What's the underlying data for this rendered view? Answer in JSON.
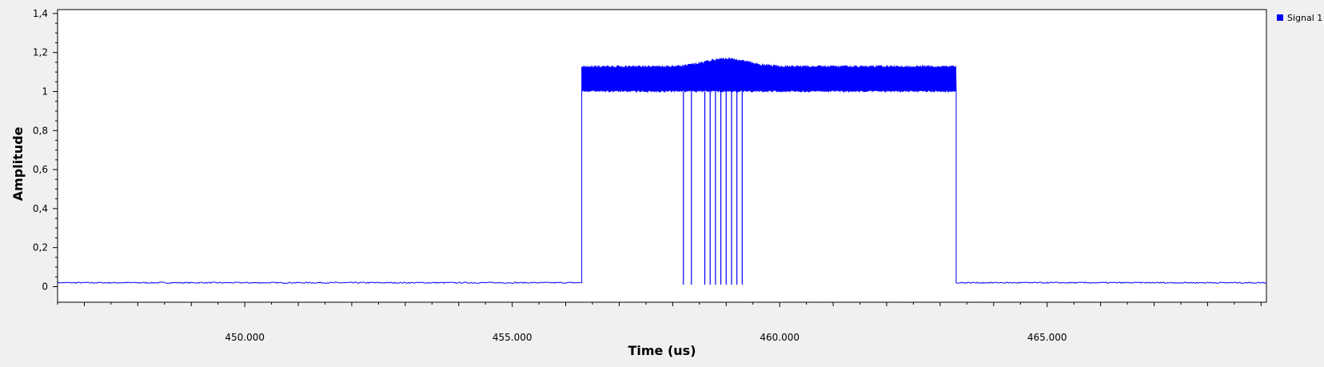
{
  "chart_data": {
    "type": "line",
    "title": "",
    "xlabel": "Time (us)",
    "ylabel": "Amplitude",
    "xlim": [
      446.5,
      469.1
    ],
    "ylim": [
      -0.08,
      1.42
    ],
    "x_ticks": [
      450.0,
      455.0,
      460.0,
      465.0
    ],
    "x_tick_labels": [
      "450.000",
      "455.000",
      "460.000",
      "465.000"
    ],
    "y_ticks": [
      0,
      0.2,
      0.4,
      0.6,
      0.8,
      1.0,
      1.2,
      1.4
    ],
    "y_tick_labels": [
      "0",
      "0,2",
      "0,4",
      "0,6",
      "0,8",
      "1",
      "1,2",
      "1,4"
    ],
    "grid": false,
    "legend_position": "top-right",
    "series": [
      {
        "name": "Signal 1",
        "color": "#0000ff",
        "baseline_level": 0.02,
        "burst_start": 456.3,
        "burst_end": 463.3,
        "burst_low": 1.0,
        "burst_high": 1.13,
        "bump_center": 459.0,
        "bump_peak": 1.17,
        "dropouts": [
          458.2,
          458.35,
          458.6,
          458.7,
          458.8,
          458.9,
          459.0,
          459.1,
          459.2,
          459.3
        ],
        "dropout_low": 0.01
      }
    ]
  }
}
